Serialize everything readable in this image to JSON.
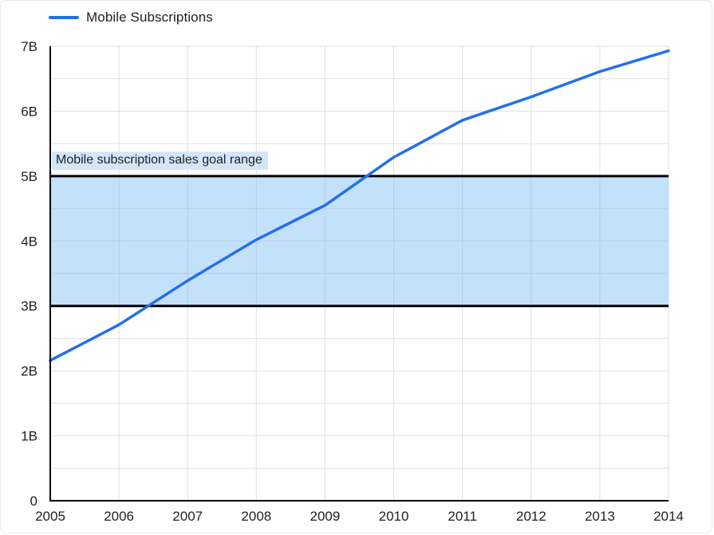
{
  "legend": {
    "series_label": "Mobile Subscriptions"
  },
  "colors": {
    "line": "#2270e9",
    "band_fill": "rgba(121,188,247,0.45)",
    "band_border": "#000000",
    "band_label_bg": "#d4e6fb",
    "grid": "#e0e0e0",
    "axis": "#000000",
    "text": "#202124"
  },
  "chart_data": {
    "type": "line",
    "title": "",
    "xlabel": "",
    "ylabel": "",
    "x": [
      2005,
      2006,
      2007,
      2008,
      2009,
      2010,
      2011,
      2012,
      2013,
      2014
    ],
    "x_tick_labels": [
      "2005",
      "2006",
      "2007",
      "2008",
      "2009",
      "2010",
      "2011",
      "2012",
      "2013",
      "2014"
    ],
    "series": [
      {
        "name": "Mobile Subscriptions",
        "values": [
          2.16,
          2.71,
          3.39,
          4.02,
          4.55,
          5.29,
          5.86,
          6.22,
          6.61,
          6.93
        ]
      }
    ],
    "unit": "billions",
    "ylim": [
      0,
      7
    ],
    "y_tick_values": [
      0,
      1,
      2,
      3,
      4,
      5,
      6,
      7
    ],
    "y_tick_labels": [
      "0",
      "1B",
      "2B",
      "3B",
      "4B",
      "5B",
      "6B",
      "7B"
    ],
    "y_minor_grid_step": 0.5,
    "grid": true,
    "legend_position": "top-left",
    "goal_band": {
      "from": 3,
      "to": 5,
      "label": "Mobile subscription sales goal range"
    }
  }
}
